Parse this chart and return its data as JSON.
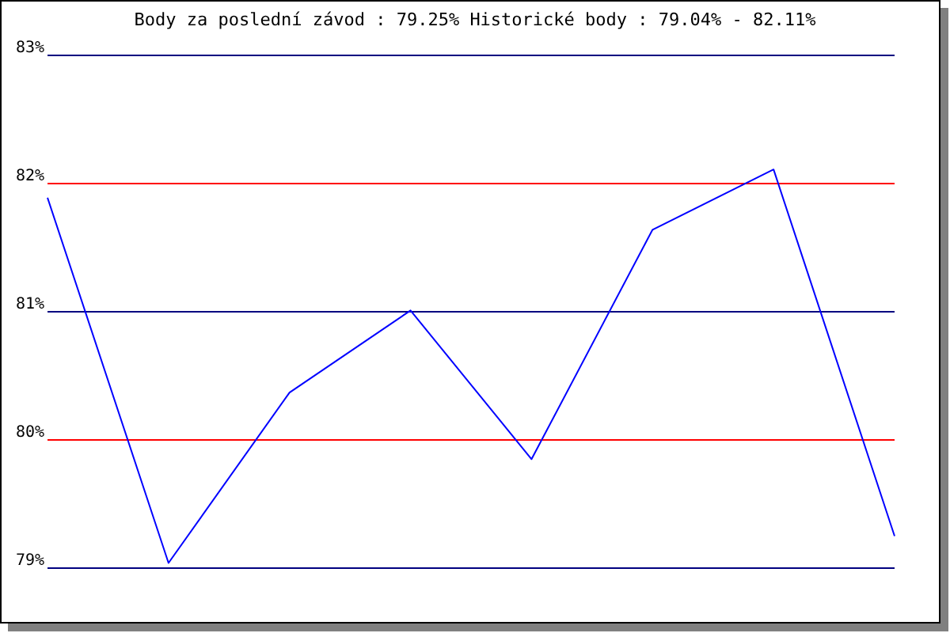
{
  "chart_data": {
    "type": "line",
    "title": "Body za poslední závod : 79.25%  Historické body : 79.04% - 82.11%",
    "categories": [
      null,
      null,
      null,
      null,
      null,
      null,
      null,
      null
    ],
    "series": [
      {
        "color": "#0000ff",
        "values": [
          81.89,
          79.04,
          80.37,
          81.01,
          79.85,
          81.64,
          82.11,
          79.25
        ]
      }
    ],
    "ylim": [
      79,
      83
    ],
    "yticks": [
      {
        "value": 79,
        "label": "79%"
      },
      {
        "value": 80,
        "label": "80%"
      },
      {
        "value": 81,
        "label": "81%"
      },
      {
        "value": 82,
        "label": "82%"
      },
      {
        "value": 83,
        "label": "83%"
      }
    ],
    "ref_lines": [
      {
        "axis": "y",
        "value": 79,
        "color": "#000080"
      },
      {
        "axis": "y",
        "value": 80,
        "color": "#ff0000"
      },
      {
        "axis": "y",
        "value": 81,
        "color": "#000080"
      },
      {
        "axis": "y",
        "value": 83,
        "color": "#000080"
      },
      {
        "axis": "y",
        "value": 82,
        "color": "#ff0000"
      }
    ],
    "tick_labels": "y",
    "marker": "none",
    "line_style": "solid"
  }
}
